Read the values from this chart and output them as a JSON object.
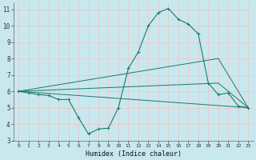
{
  "xlabel": "Humidex (Indice chaleur)",
  "xlim": [
    -0.5,
    23.5
  ],
  "ylim": [
    3,
    11.4
  ],
  "xticks": [
    0,
    1,
    2,
    3,
    4,
    5,
    6,
    7,
    8,
    9,
    10,
    11,
    12,
    13,
    14,
    15,
    16,
    17,
    18,
    19,
    20,
    21,
    22,
    23
  ],
  "yticks": [
    3,
    4,
    5,
    6,
    7,
    8,
    9,
    10,
    11
  ],
  "bg_color": "#c8e8ee",
  "grid_color": "#e8c8c8",
  "line_color": "#1a7a6e",
  "line_main": {
    "x": [
      0,
      1,
      2,
      3,
      4,
      5,
      6,
      7,
      8,
      9,
      10,
      11,
      12,
      13,
      14,
      15,
      16,
      17,
      18,
      19,
      20,
      21,
      22,
      23
    ],
    "y": [
      6.0,
      5.9,
      5.8,
      5.75,
      5.5,
      5.5,
      4.4,
      3.4,
      3.7,
      3.75,
      5.0,
      7.4,
      8.4,
      10.0,
      10.8,
      11.05,
      10.4,
      10.1,
      9.5,
      6.5,
      5.8,
      5.9,
      5.1,
      5.0
    ]
  },
  "line_flat": {
    "x": [
      0,
      23
    ],
    "y": [
      6.0,
      5.0
    ]
  },
  "line_top": {
    "x": [
      0,
      20,
      23
    ],
    "y": [
      6.0,
      8.0,
      5.0
    ]
  },
  "line_mid": {
    "x": [
      0,
      20,
      23
    ],
    "y": [
      6.0,
      6.5,
      5.0
    ]
  }
}
